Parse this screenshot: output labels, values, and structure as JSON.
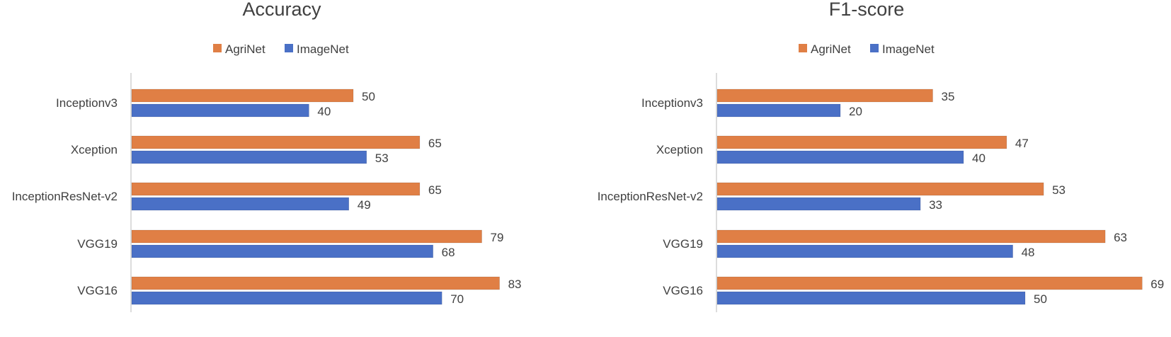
{
  "colors": {
    "agrinet": "#e07f45",
    "imagenet": "#4a70c6",
    "axis": "#d0d0d0",
    "text": "#404040"
  },
  "chart_data": [
    {
      "type": "bar",
      "orientation": "horizontal",
      "title": "Accuracy",
      "categories": [
        "Inceptionv3",
        "Xception",
        "InceptionResNet-v2",
        "VGG19",
        "VGG16"
      ],
      "series": [
        {
          "name": "AgriNet",
          "values": [
            50,
            65,
            65,
            79,
            83
          ]
        },
        {
          "name": "ImageNet",
          "values": [
            40,
            53,
            49,
            68,
            70
          ]
        }
      ],
      "xlim": [
        0,
        100
      ],
      "legend": "top",
      "grid": false
    },
    {
      "type": "bar",
      "orientation": "horizontal",
      "title": "F1-score",
      "categories": [
        "Inceptionv3",
        "Xception",
        "InceptionResNet-v2",
        "VGG19",
        "VGG16"
      ],
      "series": [
        {
          "name": "AgriNet",
          "values": [
            35,
            47,
            53,
            63,
            69
          ]
        },
        {
          "name": "ImageNet",
          "values": [
            20,
            40,
            33,
            48,
            50
          ]
        }
      ],
      "xlim": [
        0,
        80
      ],
      "legend": "top",
      "grid": false
    }
  ]
}
